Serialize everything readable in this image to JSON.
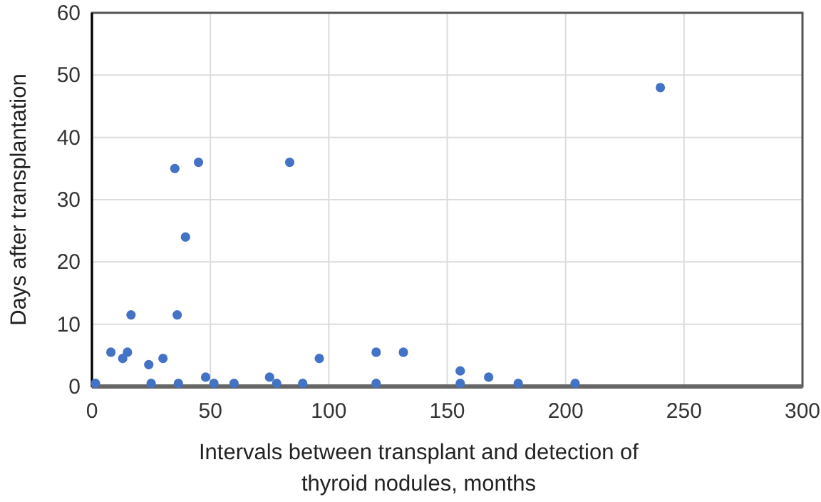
{
  "chart_data": {
    "type": "scatter",
    "xlabel": "Intervals between transplant and detection of thyroid nodules, months",
    "ylabel": "Days after transplantation",
    "xlim": [
      0,
      300
    ],
    "xticks": [
      0,
      50,
      100,
      150,
      200,
      250,
      300
    ],
    "ylim": [
      0,
      60
    ],
    "yticks": [
      0,
      10,
      20,
      30,
      40,
      50,
      60
    ],
    "grid": true,
    "marker": "circle",
    "series": [
      {
        "color": "#4472c4",
        "x": [
          1.5,
          8,
          13,
          15,
          16.5,
          24,
          25,
          30,
          35,
          36,
          36.5,
          39.5,
          45,
          48,
          51.5,
          60,
          75,
          78,
          83.5,
          89,
          96,
          120,
          120,
          131.5,
          155.5,
          155.5,
          167.5,
          180,
          204,
          240
        ],
        "values": [
          0.5,
          5.5,
          4.5,
          5.5,
          11.5,
          3.5,
          0.5,
          4.5,
          35,
          11.5,
          0.5,
          24,
          36,
          1.5,
          0.5,
          0.5,
          1.5,
          0.5,
          36,
          0.5,
          4.5,
          5.5,
          0.5,
          5.5,
          2.5,
          0.5,
          1.5,
          0.5,
          0.5,
          48
        ]
      }
    ]
  }
}
